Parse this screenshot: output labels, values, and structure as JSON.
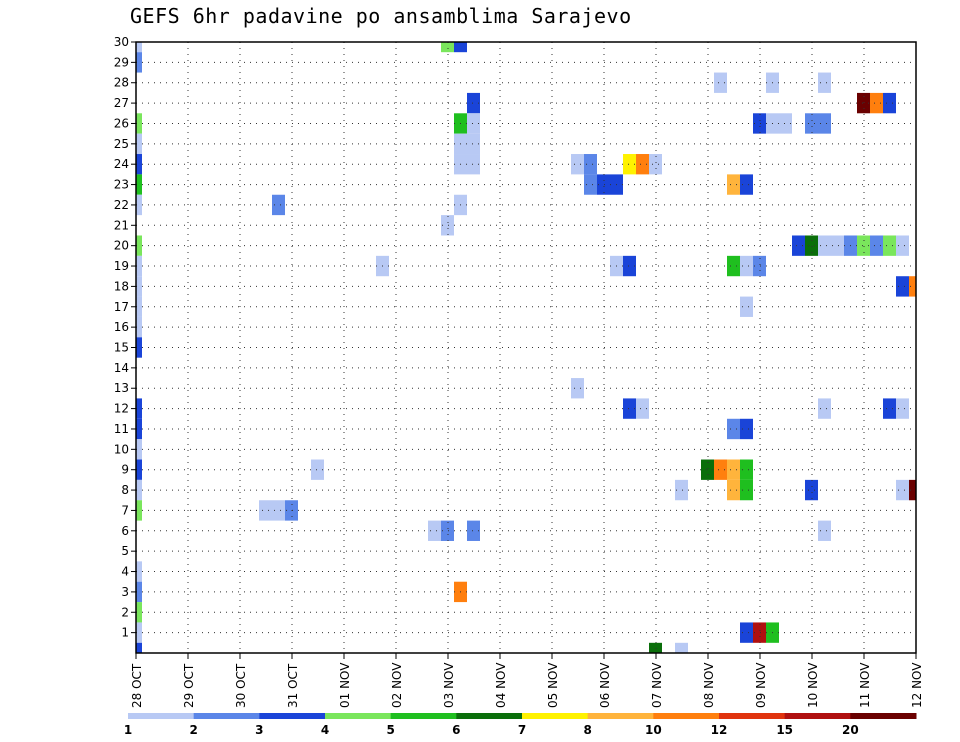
{
  "chart_data": {
    "type": "heatmap",
    "title": "GEFS 6hr padavine po ansamblima Sarajevo",
    "xlabel": "",
    "ylabel": "",
    "x_tick_labels": [
      "28 OCT",
      "29 OCT",
      "30 OCT",
      "31 OCT",
      "01 NOV",
      "02 NOV",
      "03 NOV",
      "04 NOV",
      "05 NOV",
      "06 NOV",
      "07 NOV",
      "08 NOV",
      "09 NOV",
      "10 NOV",
      "11 NOV",
      "12 NOV"
    ],
    "y_tick_labels": [
      "1",
      "2",
      "3",
      "4",
      "5",
      "6",
      "7",
      "8",
      "9",
      "10",
      "11",
      "12",
      "13",
      "14",
      "15",
      "16",
      "17",
      "18",
      "19",
      "20",
      "21",
      "22",
      "23",
      "24",
      "25",
      "26",
      "27",
      "28",
      "29",
      "30"
    ],
    "y_range": [
      0,
      30
    ],
    "x_range_days": [
      0,
      15
    ],
    "grid": true,
    "legend": {
      "labels": [
        "1",
        "2",
        "3",
        "4",
        "5",
        "6",
        "7",
        "8",
        "10",
        "12",
        "15",
        "20"
      ],
      "colors": [
        "#b8c9f4",
        "#5b86e8",
        "#1a44d8",
        "#7ae65c",
        "#1fbf1f",
        "#0a6e0a",
        "#fff200",
        "#ffb43c",
        "#ff7f0e",
        "#e0330e",
        "#b01010",
        "#6a0000"
      ]
    },
    "cells": [
      {
        "m": 30,
        "d": 0.0,
        "l": 1
      },
      {
        "m": 29,
        "d": 0.0,
        "l": 2
      },
      {
        "m": 26,
        "d": 0.0,
        "l": 4
      },
      {
        "m": 25,
        "d": 0.0,
        "l": 1
      },
      {
        "m": 24,
        "d": 0.0,
        "l": 3
      },
      {
        "m": 23,
        "d": 0.0,
        "l": 5
      },
      {
        "m": 22,
        "d": 0.0,
        "l": 1
      },
      {
        "m": 20,
        "d": 0.0,
        "l": 4
      },
      {
        "m": 19,
        "d": 0.0,
        "l": 1
      },
      {
        "m": 18,
        "d": 0.0,
        "l": 1
      },
      {
        "m": 17,
        "d": 0.0,
        "l": 1
      },
      {
        "m": 16,
        "d": 0.0,
        "l": 1
      },
      {
        "m": 15,
        "d": 0.0,
        "l": 3
      },
      {
        "m": 12,
        "d": 0.0,
        "l": 3
      },
      {
        "m": 11,
        "d": 0.0,
        "l": 3
      },
      {
        "m": 10,
        "d": 0.0,
        "l": 1
      },
      {
        "m": 9,
        "d": 0.0,
        "l": 3
      },
      {
        "m": 8,
        "d": 0.0,
        "l": 1
      },
      {
        "m": 7,
        "d": 0.0,
        "l": 4
      },
      {
        "m": 4,
        "d": 0.0,
        "l": 1
      },
      {
        "m": 3,
        "d": 0.0,
        "l": 2
      },
      {
        "m": 2,
        "d": 0.0,
        "l": 4
      },
      {
        "m": 1,
        "d": 0.0,
        "l": 1
      },
      {
        "m": 0,
        "d": 0.0,
        "l": 3
      },
      {
        "m": 22,
        "d": 2.75,
        "l": 2
      },
      {
        "m": 7,
        "d": 2.5,
        "l": 1
      },
      {
        "m": 7,
        "d": 2.75,
        "l": 1
      },
      {
        "m": 7,
        "d": 3.0,
        "l": 2
      },
      {
        "m": 19,
        "d": 4.75,
        "l": 1
      },
      {
        "m": 9,
        "d": 3.5,
        "l": 1
      },
      {
        "m": 30,
        "d": 6.0,
        "l": 4
      },
      {
        "m": 30,
        "d": 6.25,
        "l": 3
      },
      {
        "m": 27,
        "d": 6.5,
        "l": 3
      },
      {
        "m": 26,
        "d": 6.25,
        "l": 5
      },
      {
        "m": 26,
        "d": 6.5,
        "l": 1
      },
      {
        "m": 25,
        "d": 6.25,
        "l": 1
      },
      {
        "m": 25,
        "d": 6.5,
        "l": 1
      },
      {
        "m": 24,
        "d": 6.25,
        "l": 1
      },
      {
        "m": 24,
        "d": 6.5,
        "l": 1
      },
      {
        "m": 22,
        "d": 6.25,
        "l": 1
      },
      {
        "m": 21,
        "d": 6.0,
        "l": 1
      },
      {
        "m": 6,
        "d": 5.75,
        "l": 1
      },
      {
        "m": 6,
        "d": 6.0,
        "l": 2
      },
      {
        "m": 6,
        "d": 6.5,
        "l": 2
      },
      {
        "m": 3,
        "d": 6.25,
        "l": 9
      },
      {
        "m": 24,
        "d": 8.5,
        "l": 1
      },
      {
        "m": 24,
        "d": 8.75,
        "l": 2
      },
      {
        "m": 23,
        "d": 8.75,
        "l": 2
      },
      {
        "m": 23,
        "d": 9.0,
        "l": 3
      },
      {
        "m": 23,
        "d": 9.25,
        "l": 3
      },
      {
        "m": 13,
        "d": 8.5,
        "l": 1
      },
      {
        "m": 24,
        "d": 9.5,
        "l": 7
      },
      {
        "m": 24,
        "d": 9.75,
        "l": 9
      },
      {
        "m": 24,
        "d": 10.0,
        "l": 1
      },
      {
        "m": 19,
        "d": 9.25,
        "l": 1
      },
      {
        "m": 19,
        "d": 9.5,
        "l": 3
      },
      {
        "m": 12,
        "d": 9.5,
        "l": 3
      },
      {
        "m": 12,
        "d": 9.75,
        "l": 1
      },
      {
        "m": 0,
        "d": 10.0,
        "l": 6
      },
      {
        "m": 0,
        "d": 10.5,
        "l": 1
      },
      {
        "m": 8,
        "d": 10.5,
        "l": 1
      },
      {
        "m": 28,
        "d": 11.25,
        "l": 1
      },
      {
        "m": 23,
        "d": 11.5,
        "l": 8
      },
      {
        "m": 23,
        "d": 11.75,
        "l": 3
      },
      {
        "m": 19,
        "d": 11.5,
        "l": 5
      },
      {
        "m": 19,
        "d": 11.75,
        "l": 1
      },
      {
        "m": 19,
        "d": 12.0,
        "l": 2
      },
      {
        "m": 17,
        "d": 11.75,
        "l": 1
      },
      {
        "m": 11,
        "d": 11.5,
        "l": 2
      },
      {
        "m": 11,
        "d": 11.75,
        "l": 3
      },
      {
        "m": 9,
        "d": 11.0,
        "l": 6
      },
      {
        "m": 9,
        "d": 11.25,
        "l": 9
      },
      {
        "m": 9,
        "d": 11.5,
        "l": 8
      },
      {
        "m": 9,
        "d": 11.75,
        "l": 5
      },
      {
        "m": 8,
        "d": 11.5,
        "l": 8
      },
      {
        "m": 8,
        "d": 11.75,
        "l": 5
      },
      {
        "m": 1,
        "d": 11.75,
        "l": 3
      },
      {
        "m": 1,
        "d": 12.0,
        "l": 11
      },
      {
        "m": 1,
        "d": 12.25,
        "l": 5
      },
      {
        "m": 28,
        "d": 12.25,
        "l": 1
      },
      {
        "m": 28,
        "d": 13.25,
        "l": 1
      },
      {
        "m": 26,
        "d": 12.0,
        "l": 3
      },
      {
        "m": 26,
        "d": 12.25,
        "l": 1
      },
      {
        "m": 26,
        "d": 12.5,
        "l": 1
      },
      {
        "m": 26,
        "d": 13.0,
        "l": 2
      },
      {
        "m": 26,
        "d": 13.25,
        "l": 2
      },
      {
        "m": 20,
        "d": 12.75,
        "l": 3
      },
      {
        "m": 20,
        "d": 13.0,
        "l": 6
      },
      {
        "m": 20,
        "d": 13.25,
        "l": 1
      },
      {
        "m": 20,
        "d": 13.5,
        "l": 1
      },
      {
        "m": 20,
        "d": 13.75,
        "l": 2
      },
      {
        "m": 20,
        "d": 14.0,
        "l": 4
      },
      {
        "m": 20,
        "d": 14.25,
        "l": 2
      },
      {
        "m": 20,
        "d": 14.5,
        "l": 4
      },
      {
        "m": 20,
        "d": 14.75,
        "l": 1
      },
      {
        "m": 27,
        "d": 14.0,
        "l": 12
      },
      {
        "m": 27,
        "d": 14.25,
        "l": 9
      },
      {
        "m": 27,
        "d": 14.5,
        "l": 3
      },
      {
        "m": 18,
        "d": 14.75,
        "l": 3
      },
      {
        "m": 18,
        "d": 15.0,
        "l": 9
      },
      {
        "m": 12,
        "d": 13.25,
        "l": 1
      },
      {
        "m": 12,
        "d": 14.5,
        "l": 3
      },
      {
        "m": 12,
        "d": 14.75,
        "l": 1
      },
      {
        "m": 8,
        "d": 13.0,
        "l": 3
      },
      {
        "m": 8,
        "d": 14.75,
        "l": 1
      },
      {
        "m": 8,
        "d": 15.0,
        "l": 12
      },
      {
        "m": 6,
        "d": 13.25,
        "l": 1
      }
    ]
  }
}
